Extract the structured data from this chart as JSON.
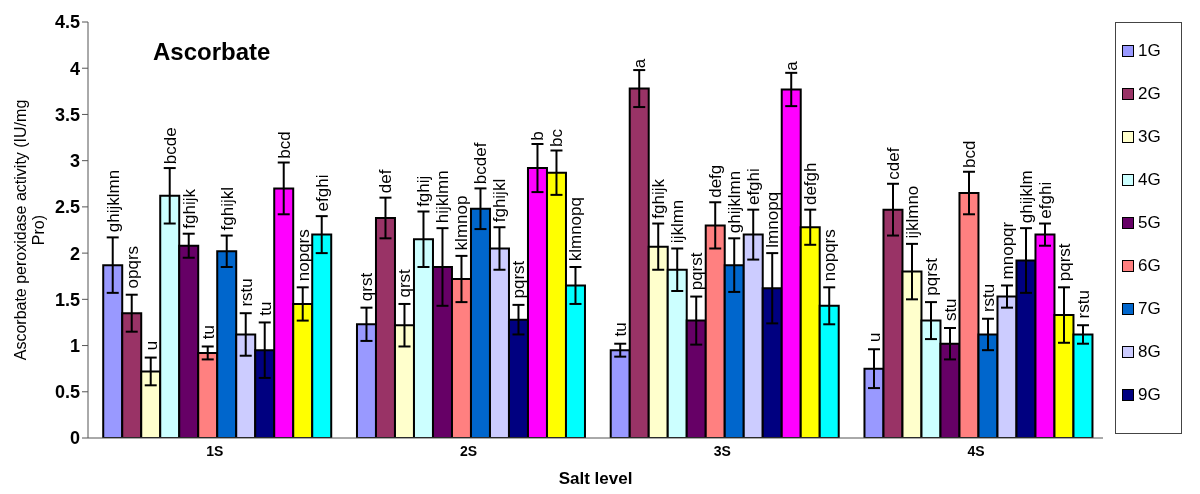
{
  "chart_data": {
    "type": "bar",
    "title": "Ascorbate",
    "xlabel": "Salt level",
    "ylabel": "Ascorbate peroxidase activity (IU/mg Pro)",
    "categories": [
      "1S",
      "2S",
      "3S",
      "4S"
    ],
    "ylim": [
      0,
      4.5
    ],
    "yticks": [
      0,
      0.5,
      1,
      1.5,
      2,
      2.5,
      3,
      3.5,
      4,
      4.5
    ],
    "grid": false,
    "legend": "right",
    "series": [
      {
        "name": "1G",
        "color": "#9999ff",
        "values": [
          1.87,
          1.23,
          0.95,
          0.75
        ],
        "errors": [
          0.3,
          0.18,
          0.07,
          0.21
        ],
        "value_labels": [
          "ghijklmn",
          "qrst",
          "tu",
          "u"
        ]
      },
      {
        "name": "2G",
        "color": "#993366",
        "values": [
          1.35,
          2.38,
          3.78,
          2.47
        ],
        "errors": [
          0.2,
          0.22,
          0.2,
          0.28
        ],
        "value_labels": [
          "opqrs",
          "def",
          "a",
          "cdef"
        ]
      },
      {
        "name": "3G",
        "color": "#ffffcc",
        "values": [
          0.72,
          1.22,
          2.07,
          1.8
        ],
        "errors": [
          0.15,
          0.23,
          0.25,
          0.3
        ],
        "value_labels": [
          "u",
          "qrst",
          "fghijk",
          "ijklmno"
        ]
      },
      {
        "name": "4G",
        "color": "#ccffff",
        "values": [
          2.62,
          2.15,
          1.82,
          1.27
        ],
        "errors": [
          0.3,
          0.3,
          0.23,
          0.2
        ],
        "value_labels": [
          "bcde",
          "fghij",
          "ijklmn",
          "pqrst"
        ]
      },
      {
        "name": "5G",
        "color": "#660066",
        "values": [
          2.08,
          1.85,
          1.27,
          1.02
        ],
        "errors": [
          0.13,
          0.42,
          0.26,
          0.17
        ],
        "value_labels": [
          "fghijk",
          "hijklmn",
          "pqrst",
          "stu"
        ]
      },
      {
        "name": "6G",
        "color": "#ff8080",
        "values": [
          0.92,
          1.72,
          2.3,
          2.65
        ],
        "errors": [
          0.07,
          0.25,
          0.25,
          0.23
        ],
        "value_labels": [
          "tu",
          "klmnop",
          "defg",
          "bcd"
        ]
      },
      {
        "name": "7G",
        "color": "#0066cc",
        "values": [
          2.02,
          2.48,
          1.87,
          1.12
        ],
        "errors": [
          0.17,
          0.22,
          0.29,
          0.17
        ],
        "value_labels": [
          "fghijkl",
          "bcdef",
          "ghijklmn",
          "rstu"
        ]
      },
      {
        "name": "8G",
        "color": "#ccccff",
        "values": [
          1.12,
          2.05,
          2.2,
          1.53
        ],
        "errors": [
          0.23,
          0.23,
          0.27,
          0.12
        ],
        "value_labels": [
          "rstu",
          "fghijkl",
          "efghi",
          "mnopqr"
        ]
      },
      {
        "name": "9G",
        "color": "#000080",
        "values": [
          0.95,
          1.28,
          1.62,
          1.92
        ],
        "errors": [
          0.3,
          0.16,
          0.38,
          0.35
        ],
        "value_labels": [
          "tu",
          "pqrst",
          "lmnopq",
          "ghijklm"
        ]
      },
      {
        "color": "#ff00ff",
        "values": [
          2.7,
          2.92,
          3.77,
          2.2
        ],
        "errors": [
          0.28,
          0.26,
          0.18,
          0.12
        ],
        "value_labels": [
          "bcd",
          "b",
          "a",
          "efghi"
        ]
      },
      {
        "color": "#ffff00",
        "values": [
          1.45,
          2.87,
          2.28,
          1.33
        ],
        "errors": [
          0.18,
          0.24,
          0.19,
          0.3
        ],
        "value_labels": [
          "nopqrs",
          "bc",
          "defgh",
          "pqrst"
        ]
      },
      {
        "color": "#00ffff",
        "values": [
          2.2,
          1.65,
          1.43,
          1.12
        ],
        "errors": [
          0.2,
          0.2,
          0.2,
          0.1
        ],
        "value_labels": [
          "efghi",
          "klmnopq",
          "nopqrs",
          "rstu"
        ]
      }
    ]
  }
}
